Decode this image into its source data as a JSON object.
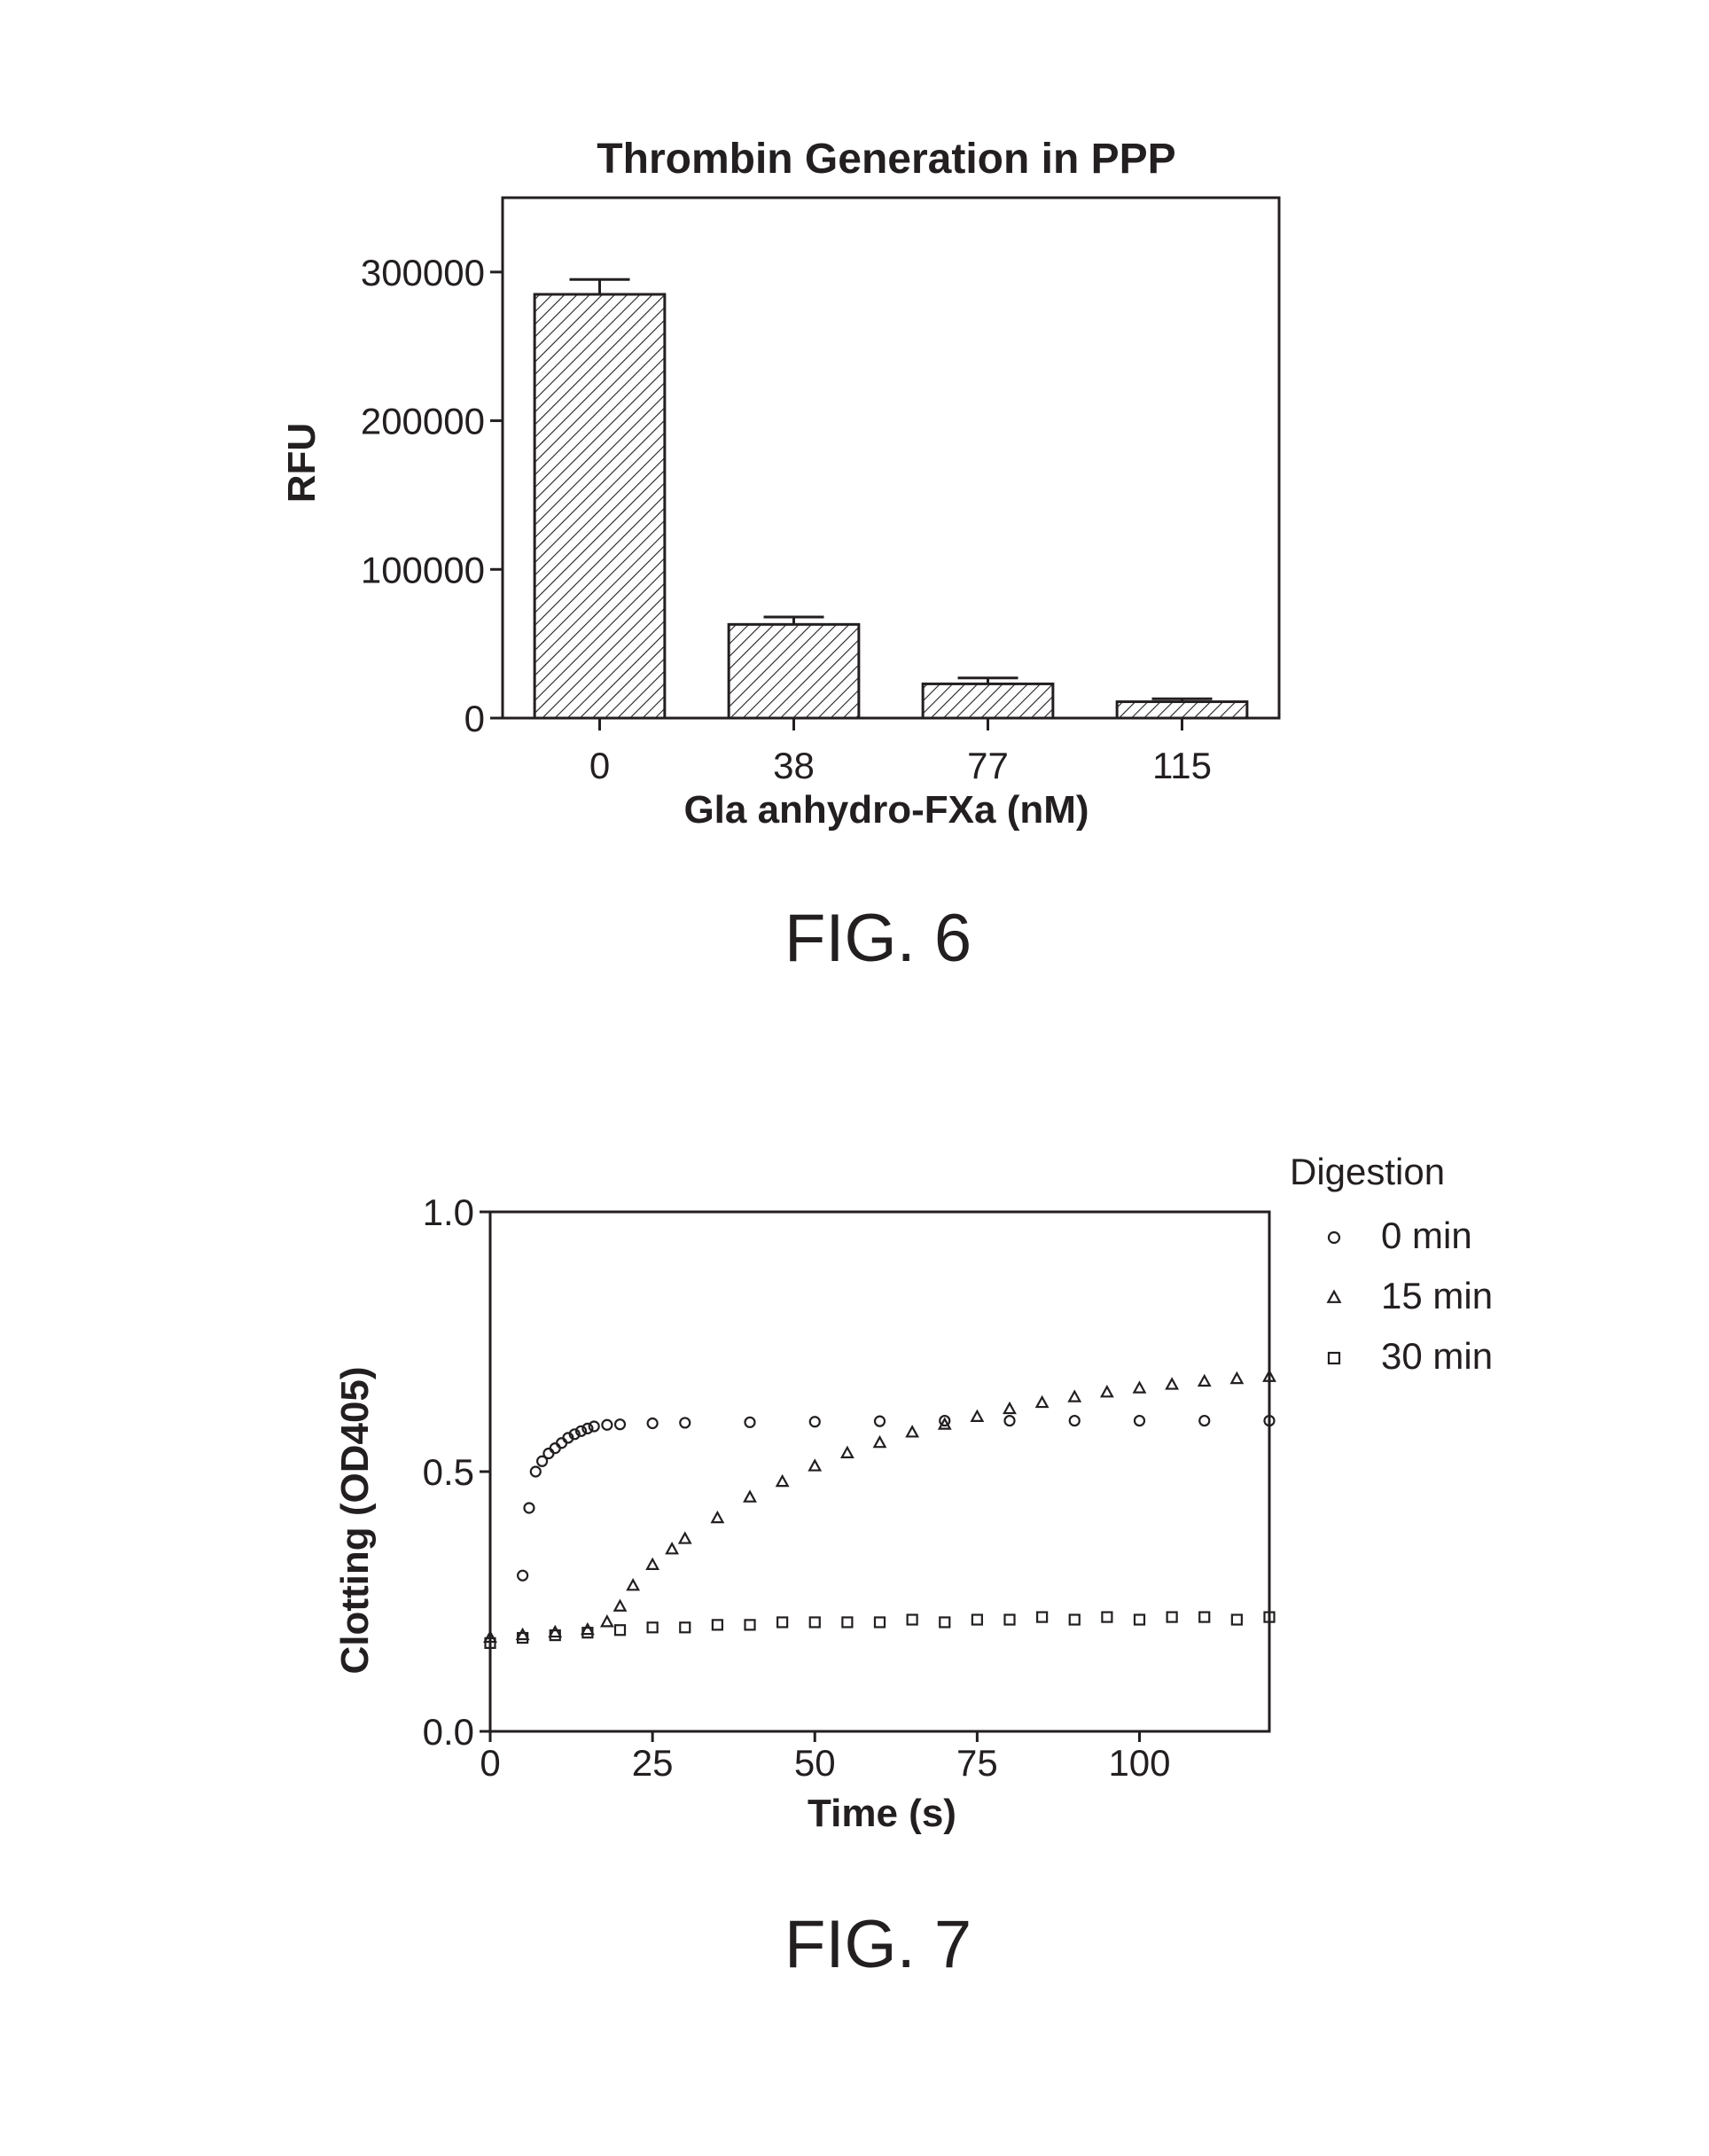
{
  "figures": [
    {
      "caption": "FIG. 6"
    },
    {
      "caption": "FIG. 7"
    }
  ],
  "chart_data": [
    {
      "type": "bar",
      "title": "Thrombin Generation in PPP",
      "xlabel": "Gla anhydro-FXa (nM)",
      "ylabel": "RFU",
      "categories": [
        "0",
        "38",
        "77",
        "115"
      ],
      "values": [
        285000,
        63000,
        23000,
        11000
      ],
      "error": [
        10000,
        5000,
        4000,
        2000
      ],
      "ylim": [
        0,
        350000
      ],
      "yticks": [
        0,
        100000,
        200000,
        300000
      ],
      "ytick_labels": [
        "0",
        "100000",
        "200000",
        "300000"
      ],
      "bar_fill": "hatched",
      "grid": false,
      "colors": {
        "ink": "#231f20",
        "fill": "#ffffff"
      }
    },
    {
      "type": "scatter",
      "title": "",
      "xlabel": "Time (s)",
      "ylabel": "Clotting (OD405)",
      "xlim": [
        0,
        120
      ],
      "ylim": [
        0,
        1.0
      ],
      "xticks": [
        0,
        25,
        50,
        75,
        100
      ],
      "xtick_labels": [
        "0",
        "25",
        "50",
        "75",
        "100"
      ],
      "yticks": [
        0,
        0.5,
        1.0
      ],
      "ytick_labels": [
        "0.0",
        "0.5",
        "1.0"
      ],
      "legend_title": "Digestion",
      "legend_position": "outside-top-right",
      "grid": false,
      "series": [
        {
          "name": "0 min",
          "marker": "circle",
          "x": [
            5,
            6,
            7,
            8,
            9,
            10,
            11,
            12,
            13,
            14,
            15,
            16,
            18,
            20,
            25,
            30,
            40,
            50,
            60,
            70,
            80,
            90,
            100,
            110,
            120
          ],
          "y": [
            0.3,
            0.43,
            0.5,
            0.52,
            0.535,
            0.545,
            0.555,
            0.565,
            0.572,
            0.578,
            0.583,
            0.587,
            0.59,
            0.591,
            0.593,
            0.594,
            0.595,
            0.596,
            0.597,
            0.598,
            0.598,
            0.598,
            0.598,
            0.598,
            0.598
          ]
        },
        {
          "name": "15 min",
          "marker": "triangle",
          "x": [
            0,
            5,
            10,
            15,
            18,
            20,
            22,
            25,
            28,
            30,
            35,
            40,
            45,
            50,
            55,
            60,
            65,
            70,
            75,
            80,
            85,
            90,
            95,
            100,
            105,
            110,
            115,
            120
          ],
          "y": [
            0.18,
            0.185,
            0.19,
            0.195,
            0.21,
            0.24,
            0.28,
            0.32,
            0.35,
            0.37,
            0.41,
            0.45,
            0.48,
            0.51,
            0.535,
            0.555,
            0.575,
            0.59,
            0.605,
            0.62,
            0.632,
            0.643,
            0.652,
            0.66,
            0.667,
            0.673,
            0.678,
            0.682
          ]
        },
        {
          "name": "30 min",
          "marker": "square",
          "x": [
            0,
            5,
            10,
            15,
            20,
            25,
            30,
            35,
            40,
            45,
            50,
            55,
            60,
            65,
            70,
            75,
            80,
            85,
            90,
            95,
            100,
            105,
            110,
            115,
            120
          ],
          "y": [
            0.17,
            0.18,
            0.185,
            0.19,
            0.195,
            0.2,
            0.2,
            0.205,
            0.205,
            0.21,
            0.21,
            0.21,
            0.21,
            0.215,
            0.21,
            0.215,
            0.215,
            0.22,
            0.215,
            0.22,
            0.215,
            0.22,
            0.22,
            0.215,
            0.22
          ]
        }
      ],
      "colors": {
        "ink": "#231f20"
      }
    }
  ]
}
